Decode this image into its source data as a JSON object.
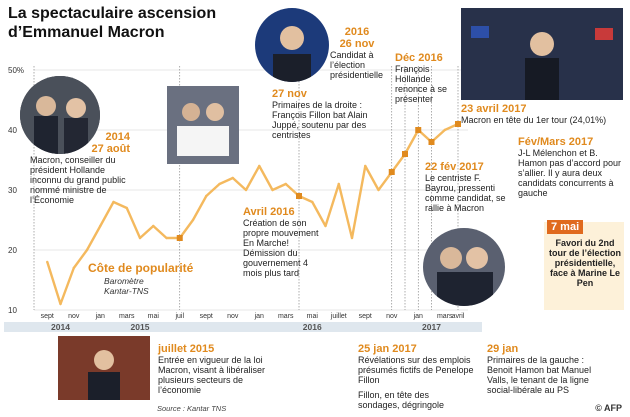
{
  "title": "La spectaculaire ascension d’Emmanuel Macron",
  "legend": {
    "title": "Côte de popularité",
    "subtitle": "Baromètre Kantar-TNS"
  },
  "source": "Source : Kantar TNS",
  "afp": "© AFP",
  "annotations": {
    "a2014_date": "2014\n27 août",
    "a2014_text": "Macron, conseiller du président Hollande inconnu du grand public nommé ministre de l’Économie",
    "jul2015_date": "juillet 2015",
    "jul2015_text": "Entrée en vigueur de la loi Macron, visant à libéraliser plusieurs secteurs de l’économie",
    "apr2016_date": "Avril 2016",
    "apr2016_text": "Création de son propre mouvement En Marche! Démission du gouvernement 4 mois plus tard",
    "nov16_date": "2016\n26 nov",
    "nov16_text": "Candidat à l’élection présidentielle",
    "nov27_date": "27 nov",
    "nov27_text": "Primaires de la droite : François Fillon bat Alain Juppé, soutenu par des centristes",
    "dec16_date": "Déc 2016",
    "dec16_text": "François Hollande renonce à se présenter",
    "jan25_date": "25 jan 2017",
    "jan25_text": "Révélations sur des emplois présumés fictifs de Penelope Fillon",
    "jan25_text2": "Fillon, en tête des sondages, dégringole",
    "jan29_date": "29 jan",
    "jan29_text": "Primaires de la gauche : Benoit Hamon bat Manuel Valls, le tenant de la ligne social-libérale au PS",
    "feb22_date": "22 fév 2017",
    "feb22_text": "Le centriste F. Bayrou, pressenti comme candidat, se rallie à Macron",
    "febmar_date": "Fév/Mars 2017",
    "febmar_text": "J-L Mélenchon et B. Hamon pas d’accord pour s’allier. Il y aura deux candidats concurrents à gauche",
    "apr23_date": "23 avril 2017",
    "apr23_text": "Macron en tête du 1er tour (24,01%)",
    "may7_date": "7 mai",
    "may7_text": "Favori du 2nd tour de l’élection présidentielle, face à Marine Le Pen"
  },
  "chart_data": {
    "type": "line",
    "title": "La spectaculaire ascension d’Emmanuel Macron",
    "ylabel": "",
    "ylim": [
      10,
      50
    ],
    "yticks": [
      "50%",
      "40",
      "30",
      "20",
      "10"
    ],
    "x_month_labels": [
      "sept",
      "nov",
      "jan",
      "mars",
      "mai",
      "juil",
      "sept",
      "nov",
      "jan",
      "mars",
      "mai",
      "juillet",
      "sept",
      "nov",
      "jan",
      "mars",
      "avril"
    ],
    "year_labels": [
      "2014",
      "2015",
      "2016",
      "2017"
    ],
    "series": [
      {
        "name": "",
        "x": [
          "2014-09",
          "2014-10",
          "2014-11",
          "2014-12",
          "2015-01",
          "2015-02",
          "2015-03",
          "2015-04",
          "2015-05",
          "2015-06",
          "2015-07",
          "2015-08",
          "2015-09",
          "2015-10",
          "2015-11",
          "2015-12",
          "2016-01",
          "2016-02",
          "2016-03",
          "2016-04",
          "2016-05",
          "2016-06",
          "2016-07",
          "2016-08",
          "2016-09",
          "2016-10",
          "2016-11",
          "2016-12",
          "2017-01",
          "2017-02",
          "2017-03",
          "2017-04"
        ],
        "values": [
          18,
          11,
          17,
          20,
          24,
          28,
          27,
          22,
          24,
          22,
          22,
          25,
          29,
          31,
          32,
          30,
          34,
          30,
          31,
          29,
          28,
          24,
          31,
          22,
          34,
          30,
          33,
          36,
          40,
          38,
          40,
          41
        ]
      }
    ],
    "markers": [
      "2014-08",
      "2015-07",
      "2016-04",
      "2016-11",
      "2016-12",
      "2017-01",
      "2017-02",
      "2017-04"
    ]
  }
}
